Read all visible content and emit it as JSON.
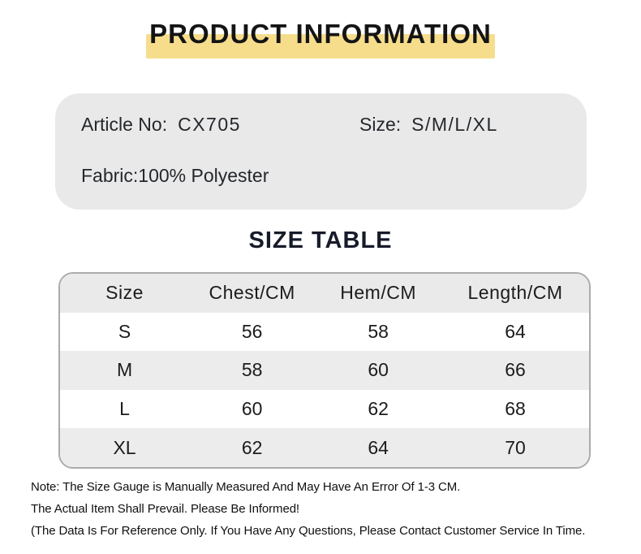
{
  "page": {
    "title": "PRODUCT INFORMATION"
  },
  "product_info": {
    "article_label": "Article No:",
    "article_value": "CX705",
    "size_label": "Size:",
    "size_value": "S/M/L/XL",
    "fabric_line": "Fabric:100% Polyester"
  },
  "size_table": {
    "title": "SIZE TABLE",
    "headers": [
      "Size",
      "Chest/CM",
      "Hem/CM",
      "Length/CM"
    ],
    "rows": [
      [
        "S",
        "56",
        "58",
        "64"
      ],
      [
        "M",
        "58",
        "60",
        "66"
      ],
      [
        "L",
        "60",
        "62",
        "68"
      ],
      [
        "XL",
        "62",
        "64",
        "70"
      ]
    ]
  },
  "notes": {
    "line1": "Note: The Size Gauge is Manually Measured And May Have An Error Of 1-3 CM.",
    "line2": "The Actual Item Shall Prevail. Please Be Informed!",
    "line3": "(The Data Is For Reference Only. If You Have Any Questions, Please Contact Customer Service In Time."
  },
  "colors": {
    "highlight_yellow": "#f6dd8c",
    "card_gray": "#e9e9e9",
    "table_header_gray": "#eaeaea",
    "table_alt_row_gray": "#ececec",
    "table_border_gray": "#ababab",
    "text_dark": "#141414"
  }
}
